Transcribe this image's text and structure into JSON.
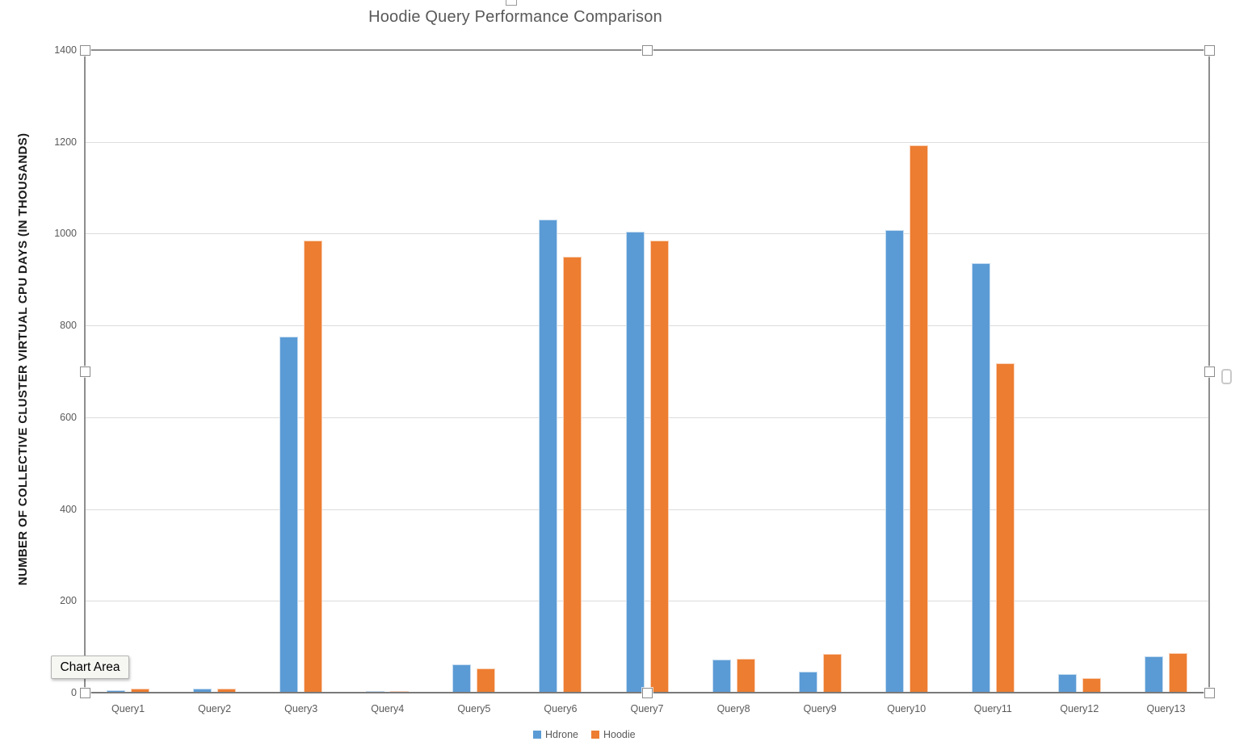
{
  "chart_data": {
    "type": "bar",
    "title": "Hoodie Query Performance Comparison",
    "ylabel": "NUMBER OF COLLECTIVE CLUSTER VIRTUAL CPU DAYS (IN THOUSANDS)",
    "xlabel": "",
    "categories": [
      "Query1",
      "Query2",
      "Query3",
      "Query4",
      "Query5",
      "Query6",
      "Query7",
      "Query8",
      "Query9",
      "Query10",
      "Query11",
      "Query12",
      "Query13"
    ],
    "series": [
      {
        "name": "Hdrone",
        "color": "#5B9BD5",
        "values": [
          5,
          8,
          775,
          4,
          62,
          1030,
          1005,
          72,
          46,
          1008,
          935,
          41,
          79
        ]
      },
      {
        "name": "Hoodie",
        "color": "#ED7D31",
        "values": [
          8,
          8,
          985,
          4,
          52,
          950,
          985,
          73,
          84,
          1193,
          718,
          32,
          87
        ]
      }
    ],
    "ylim": [
      0,
      1400
    ],
    "y_ticks": [
      0,
      200,
      400,
      600,
      800,
      1000,
      1200,
      1400
    ],
    "grid": true,
    "legend_position": "bottom"
  },
  "overlay": {
    "tooltip_label": "Chart Area"
  },
  "colors": {
    "series_hdrone": "#5B9BD5",
    "series_hoodie": "#ED7D31",
    "title_text": "#595959",
    "tick_text": "#595959",
    "gridline": "#DCDCDC",
    "axis_line": "#7A7A7A",
    "selection_line": "#8E8E8E",
    "tooltip_background": "#F6F6F3"
  }
}
